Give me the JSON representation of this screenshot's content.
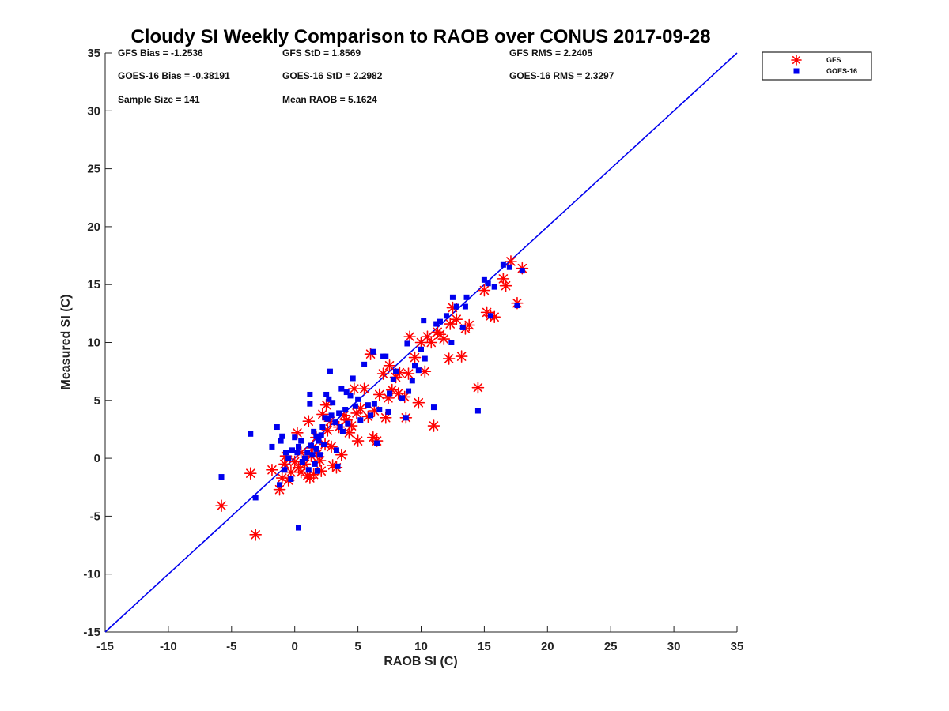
{
  "chart_data": {
    "type": "scatter",
    "title": "Cloudy SI Weekly Comparison to RAOB over CONUS 2017-09-28",
    "xlabel": "RAOB SI (C)",
    "ylabel": "Measured SI (C)",
    "xlim": [
      -15,
      35
    ],
    "ylim": [
      -15,
      35
    ],
    "xticks": [
      "-15",
      "-10",
      "-5",
      "0",
      "5",
      "10",
      "15",
      "20",
      "25",
      "30",
      "35"
    ],
    "yticks": [
      "-15",
      "-10",
      "-5",
      "0",
      "5",
      "10",
      "15",
      "20",
      "25",
      "30",
      "35"
    ],
    "grid": false,
    "legend_position": "top-right outside",
    "reference_line": {
      "type": "one-to-one",
      "color": "#0000ee",
      "from": [
        -15,
        -15
      ],
      "to": [
        35,
        35
      ]
    },
    "stats": [
      {
        "text": "GFS Bias = -1.2536",
        "row": 0,
        "col": 0
      },
      {
        "text": "GFS StD = 1.8569",
        "row": 0,
        "col": 1
      },
      {
        "text": "GFS RMS = 2.2405",
        "row": 0,
        "col": 2
      },
      {
        "text": "GOES-16 Bias = -0.38191",
        "row": 1,
        "col": 0
      },
      {
        "text": "GOES-16 StD = 2.2982",
        "row": 1,
        "col": 1
      },
      {
        "text": "GOES-16 RMS = 2.3297",
        "row": 1,
        "col": 2
      },
      {
        "text": "Sample Size = 141",
        "row": 2,
        "col": 0
      },
      {
        "text": "Mean RAOB = 5.1624",
        "row": 2,
        "col": 1
      }
    ],
    "series": [
      {
        "name": "GFS",
        "marker": "asterisk",
        "color": "#ff0000",
        "points": [
          [
            -5.8,
            -4.1
          ],
          [
            -3.1,
            -6.6
          ],
          [
            -3.5,
            -1.3
          ],
          [
            -1.8,
            -1.0
          ],
          [
            -1.2,
            -2.7
          ],
          [
            -1.0,
            -1.7
          ],
          [
            -0.8,
            -0.5
          ],
          [
            -0.5,
            -1.9
          ],
          [
            -0.3,
            -1.2
          ],
          [
            0.0,
            -0.3
          ],
          [
            0.2,
            2.2
          ],
          [
            0.3,
            -0.8
          ],
          [
            0.5,
            0.5
          ],
          [
            0.8,
            -0.5
          ],
          [
            1.0,
            -1.5
          ],
          [
            1.1,
            3.2
          ],
          [
            1.2,
            -1.7
          ],
          [
            1.3,
            0.2
          ],
          [
            1.5,
            -1.4
          ],
          [
            1.7,
            1.8
          ],
          [
            1.8,
            0.4
          ],
          [
            2.0,
            -0.2
          ],
          [
            2.1,
            -1.1
          ],
          [
            2.2,
            3.8
          ],
          [
            2.4,
            1.2
          ],
          [
            2.5,
            4.6
          ],
          [
            2.6,
            2.4
          ],
          [
            2.8,
            3.2
          ],
          [
            3.0,
            -0.6
          ],
          [
            3.3,
            -0.8
          ],
          [
            3.5,
            2.7
          ],
          [
            3.7,
            0.3
          ],
          [
            3.9,
            3.7
          ],
          [
            4.1,
            3.3
          ],
          [
            4.3,
            2.2
          ],
          [
            4.5,
            2.8
          ],
          [
            4.7,
            6.0
          ],
          [
            4.9,
            3.9
          ],
          [
            5.0,
            1.5
          ],
          [
            5.2,
            4.3
          ],
          [
            5.5,
            6.0
          ],
          [
            5.8,
            3.6
          ],
          [
            6.0,
            9.0
          ],
          [
            6.2,
            1.8
          ],
          [
            6.5,
            1.5
          ],
          [
            6.7,
            5.5
          ],
          [
            7.0,
            7.3
          ],
          [
            7.2,
            3.5
          ],
          [
            7.4,
            5.2
          ],
          [
            7.5,
            8.0
          ],
          [
            7.7,
            5.9
          ],
          [
            8.0,
            7.0
          ],
          [
            8.3,
            7.4
          ],
          [
            8.7,
            5.3
          ],
          [
            8.8,
            3.5
          ],
          [
            9.0,
            7.3
          ],
          [
            9.1,
            10.5
          ],
          [
            9.5,
            8.7
          ],
          [
            9.8,
            4.8
          ],
          [
            10.0,
            10.0
          ],
          [
            10.3,
            7.5
          ],
          [
            10.5,
            10.5
          ],
          [
            10.8,
            10.0
          ],
          [
            11.0,
            2.8
          ],
          [
            11.3,
            10.9
          ],
          [
            11.5,
            10.7
          ],
          [
            11.8,
            10.3
          ],
          [
            12.2,
            8.6
          ],
          [
            12.3,
            11.6
          ],
          [
            12.5,
            13.0
          ],
          [
            12.8,
            12.0
          ],
          [
            13.2,
            8.8
          ],
          [
            13.5,
            11.2
          ],
          [
            13.8,
            11.5
          ],
          [
            14.5,
            6.1
          ],
          [
            15.0,
            14.5
          ],
          [
            15.2,
            12.6
          ],
          [
            15.5,
            12.3
          ],
          [
            15.8,
            12.2
          ],
          [
            16.5,
            15.5
          ],
          [
            16.7,
            14.9
          ],
          [
            17.1,
            17.0
          ],
          [
            17.6,
            13.4
          ],
          [
            18.0,
            16.4
          ],
          [
            0.5,
            -1.2
          ],
          [
            1.4,
            0.9
          ],
          [
            -0.7,
            0.2
          ],
          [
            2.9,
            1.0
          ],
          [
            6.3,
            4.1
          ],
          [
            8.2,
            5.6
          ]
        ]
      },
      {
        "name": "GOES-16",
        "marker": "square",
        "color": "#0000ee",
        "points": [
          [
            -5.8,
            -1.6
          ],
          [
            -3.5,
            2.1
          ],
          [
            -3.1,
            -3.4
          ],
          [
            -1.8,
            1.0
          ],
          [
            -1.4,
            2.7
          ],
          [
            -1.2,
            -2.3
          ],
          [
            -1.1,
            1.5
          ],
          [
            -1.0,
            1.9
          ],
          [
            -0.8,
            -1.0
          ],
          [
            -0.7,
            0.5
          ],
          [
            -0.5,
            0.0
          ],
          [
            -0.3,
            -1.8
          ],
          [
            0.0,
            1.8
          ],
          [
            0.2,
            0.5
          ],
          [
            0.3,
            -6.0
          ],
          [
            0.5,
            1.5
          ],
          [
            0.6,
            -0.3
          ],
          [
            0.8,
            0.0
          ],
          [
            1.0,
            0.5
          ],
          [
            1.1,
            -1.0
          ],
          [
            1.2,
            5.5
          ],
          [
            1.2,
            4.7
          ],
          [
            1.3,
            1.1
          ],
          [
            1.4,
            0.3
          ],
          [
            1.5,
            2.3
          ],
          [
            1.6,
            -0.5
          ],
          [
            1.7,
            0.8
          ],
          [
            1.8,
            -1.1
          ],
          [
            1.9,
            1.5
          ],
          [
            2.0,
            0.3
          ],
          [
            2.1,
            2.0
          ],
          [
            2.2,
            2.7
          ],
          [
            2.4,
            3.5
          ],
          [
            2.5,
            5.5
          ],
          [
            2.6,
            3.4
          ],
          [
            2.7,
            5.1
          ],
          [
            2.8,
            7.5
          ],
          [
            2.9,
            3.7
          ],
          [
            3.0,
            4.8
          ],
          [
            3.2,
            3.1
          ],
          [
            3.3,
            0.7
          ],
          [
            3.4,
            -0.7
          ],
          [
            3.5,
            3.9
          ],
          [
            3.7,
            6.0
          ],
          [
            3.8,
            2.3
          ],
          [
            4.0,
            4.2
          ],
          [
            4.1,
            5.7
          ],
          [
            4.2,
            3.0
          ],
          [
            4.4,
            5.4
          ],
          [
            4.6,
            6.9
          ],
          [
            4.8,
            4.5
          ],
          [
            5.0,
            5.1
          ],
          [
            5.2,
            3.3
          ],
          [
            5.5,
            8.1
          ],
          [
            5.8,
            4.6
          ],
          [
            6.0,
            3.7
          ],
          [
            6.2,
            9.2
          ],
          [
            6.3,
            4.7
          ],
          [
            6.5,
            1.3
          ],
          [
            6.7,
            4.2
          ],
          [
            7.0,
            8.8
          ],
          [
            7.2,
            8.8
          ],
          [
            7.4,
            4.0
          ],
          [
            7.5,
            5.6
          ],
          [
            7.8,
            6.8
          ],
          [
            8.0,
            7.5
          ],
          [
            8.5,
            5.2
          ],
          [
            8.8,
            3.5
          ],
          [
            8.9,
            9.9
          ],
          [
            9.0,
            5.8
          ],
          [
            9.3,
            6.7
          ],
          [
            9.5,
            8.0
          ],
          [
            9.8,
            7.6
          ],
          [
            10.0,
            9.4
          ],
          [
            10.2,
            11.9
          ],
          [
            10.3,
            8.6
          ],
          [
            11.0,
            4.4
          ],
          [
            11.2,
            11.6
          ],
          [
            11.5,
            11.8
          ],
          [
            12.0,
            12.3
          ],
          [
            12.4,
            10.0
          ],
          [
            12.5,
            13.9
          ],
          [
            12.8,
            13.1
          ],
          [
            13.3,
            11.3
          ],
          [
            13.5,
            13.1
          ],
          [
            13.6,
            13.9
          ],
          [
            14.5,
            4.1
          ],
          [
            15.0,
            15.4
          ],
          [
            15.3,
            15.1
          ],
          [
            15.5,
            12.3
          ],
          [
            15.8,
            14.8
          ],
          [
            16.5,
            16.7
          ],
          [
            17.0,
            16.5
          ],
          [
            17.6,
            13.2
          ],
          [
            18.0,
            16.2
          ],
          [
            0.3,
            1.0
          ],
          [
            1.7,
            1.9
          ],
          [
            -0.2,
            0.7
          ],
          [
            2.3,
            1.2
          ],
          [
            3.6,
            2.7
          ]
        ]
      }
    ]
  }
}
